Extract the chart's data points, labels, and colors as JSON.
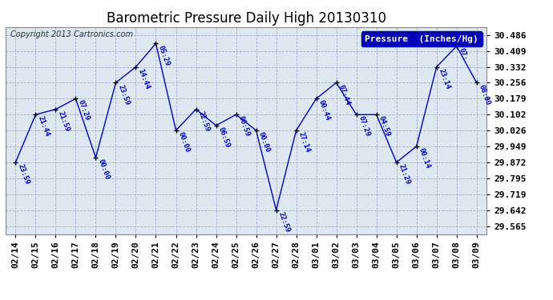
{
  "title": "Barometric Pressure Daily High 20130310",
  "copyright": "Copyright 2013 Cartronics.com",
  "legend_label": "Pressure  (Inches/Hg)",
  "background_color": "#ffffff",
  "plot_bg_color": "#dde8f0",
  "line_color": "#0000cc",
  "yticks": [
    29.565,
    29.642,
    29.719,
    29.795,
    29.872,
    29.949,
    30.026,
    30.102,
    30.179,
    30.256,
    30.332,
    30.409,
    30.486
  ],
  "dates": [
    "02/14",
    "02/15",
    "02/16",
    "02/17",
    "02/18",
    "02/19",
    "02/20",
    "02/21",
    "02/22",
    "02/23",
    "02/24",
    "02/25",
    "02/26",
    "02/27",
    "02/28",
    "03/01",
    "03/02",
    "03/03",
    "03/04",
    "03/05",
    "03/06",
    "03/07",
    "03/08",
    "03/09"
  ],
  "values": [
    29.872,
    30.102,
    30.128,
    30.179,
    29.895,
    30.256,
    30.332,
    30.445,
    30.026,
    30.128,
    30.05,
    30.102,
    30.026,
    29.642,
    30.026,
    30.179,
    30.256,
    30.102,
    30.102,
    29.872,
    29.949,
    30.332,
    30.432,
    30.256
  ],
  "annotations": [
    "23:59",
    "21:44",
    "21:59",
    "07:29",
    "00:00",
    "23:59",
    "14:44",
    "05:29",
    "00:00",
    "22:59",
    "06:59",
    "06:59",
    "00:00",
    "22:59",
    "27:14",
    "00:44",
    "07:44",
    "07:29",
    "04:59",
    "21:29",
    "00:14",
    "23:14",
    "07:",
    "08:00"
  ],
  "grid_color": "#aaaacc",
  "title_fontsize": 12,
  "tick_fontsize": 8,
  "annotation_fontsize": 6.5,
  "legend_fontsize": 8,
  "copyright_fontsize": 7
}
